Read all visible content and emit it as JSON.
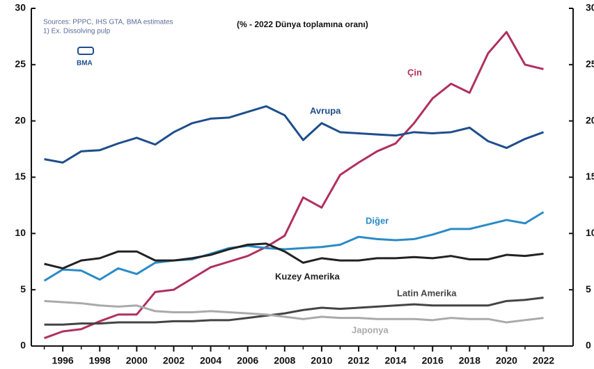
{
  "chart_data": {
    "type": "line",
    "title": "(% - 2022 Dünya toplamına oranı)",
    "source": "Sources: PPPC, IHS GTA, BMA estimates",
    "footnote": "1) Ex. Dissolving pulp",
    "logo": "BMA",
    "x": [
      1995,
      1996,
      1997,
      1998,
      1999,
      2000,
      2001,
      2002,
      2003,
      2004,
      2005,
      2006,
      2007,
      2008,
      2009,
      2010,
      2011,
      2012,
      2013,
      2014,
      2015,
      2016,
      2017,
      2018,
      2019,
      2020,
      2021,
      2022
    ],
    "xlim": [
      1994.3,
      2023.6
    ],
    "xticks": [
      1996,
      1998,
      2000,
      2002,
      2004,
      2006,
      2008,
      2010,
      2012,
      2014,
      2016,
      2018,
      2020,
      2022
    ],
    "ylim": [
      0,
      30
    ],
    "yticks": [
      0,
      5,
      10,
      15,
      20,
      25,
      30
    ],
    "y2lim": [
      0,
      30
    ],
    "y2ticks": [
      0,
      5,
      10,
      15,
      20,
      25,
      30
    ],
    "series": [
      {
        "name": "Çin",
        "color": "#b0305e",
        "values": [
          0.7,
          1.3,
          1.5,
          2.2,
          2.8,
          2.8,
          4.8,
          5.0,
          6.0,
          7.0,
          7.5,
          8.0,
          8.8,
          9.8,
          13.2,
          12.3,
          15.2,
          16.3,
          17.3,
          18.0,
          19.8,
          22.0,
          23.3,
          22.5,
          26.0,
          27.9,
          25.0,
          24.6
        ]
      },
      {
        "name": "Avrupa",
        "color": "#1f4e8c",
        "values": [
          16.6,
          16.3,
          17.3,
          17.4,
          18.0,
          18.5,
          17.9,
          19.0,
          19.8,
          20.2,
          20.3,
          20.8,
          21.3,
          20.5,
          18.3,
          19.8,
          19.0,
          18.9,
          18.8,
          18.7,
          19.0,
          18.9,
          19.0,
          19.4,
          18.2,
          17.6,
          18.4,
          19.0
        ]
      },
      {
        "name": "Diğer",
        "color": "#2a8bc7",
        "values": [
          5.8,
          6.8,
          6.7,
          5.9,
          6.9,
          6.4,
          7.4,
          7.6,
          7.7,
          8.2,
          8.7,
          8.9,
          8.7,
          8.6,
          8.7,
          8.8,
          9.0,
          9.7,
          9.5,
          9.4,
          9.5,
          9.9,
          10.4,
          10.4,
          10.8,
          11.2,
          10.9,
          11.9
        ]
      },
      {
        "name": "Kuzey Amerika",
        "color": "#222222",
        "values": [
          7.3,
          6.9,
          7.6,
          7.8,
          8.4,
          8.4,
          7.6,
          7.6,
          7.8,
          8.1,
          8.6,
          9.0,
          9.1,
          8.4,
          7.4,
          7.8,
          7.6,
          7.6,
          7.8,
          7.8,
          7.9,
          7.8,
          8.0,
          7.7,
          7.7,
          8.1,
          8.0,
          8.2
        ]
      },
      {
        "name": "Latin Amerika",
        "color": "#444444",
        "values": [
          1.9,
          1.9,
          2.0,
          2.0,
          2.1,
          2.1,
          2.1,
          2.2,
          2.2,
          2.3,
          2.3,
          2.5,
          2.7,
          2.9,
          3.2,
          3.4,
          3.3,
          3.4,
          3.5,
          3.6,
          3.7,
          3.6,
          3.6,
          3.6,
          3.6,
          4.0,
          4.1,
          4.3
        ]
      },
      {
        "name": "Japonya",
        "color": "#aaaaaa",
        "values": [
          4.0,
          3.9,
          3.8,
          3.6,
          3.5,
          3.6,
          3.1,
          3.0,
          3.0,
          3.1,
          3.0,
          2.9,
          2.8,
          2.6,
          2.4,
          2.6,
          2.5,
          2.5,
          2.4,
          2.4,
          2.4,
          2.3,
          2.5,
          2.4,
          2.4,
          2.1,
          2.3,
          2.5
        ]
      }
    ]
  }
}
